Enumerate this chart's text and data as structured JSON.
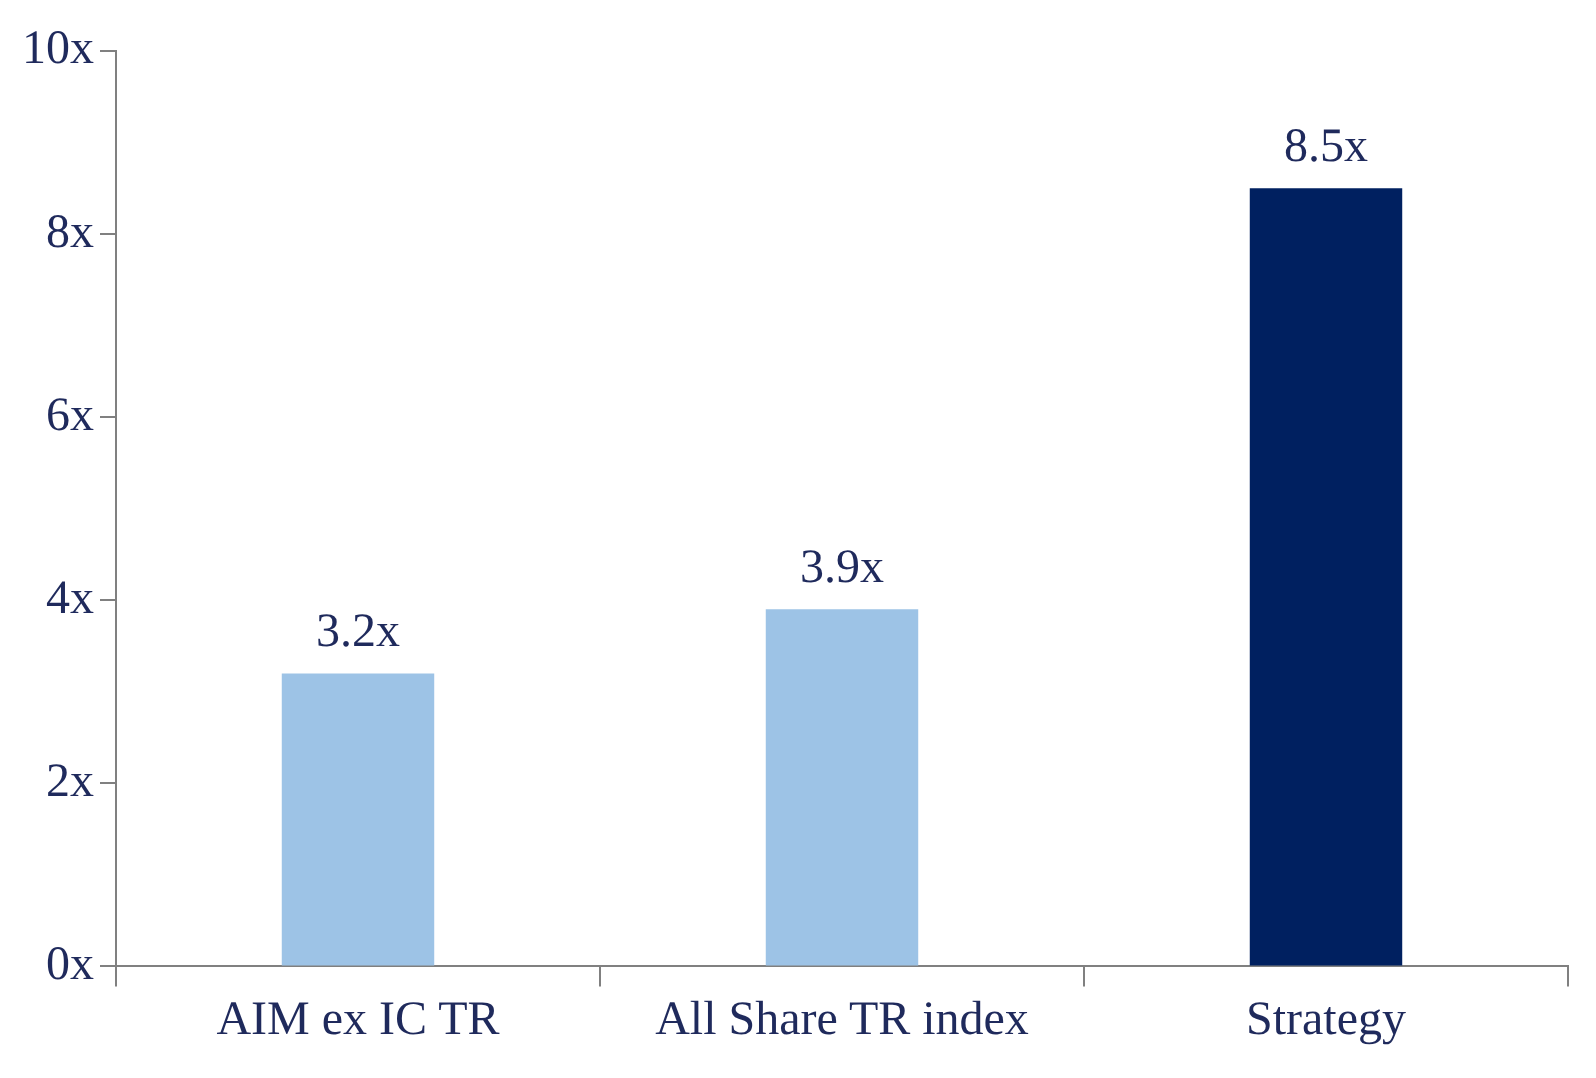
{
  "chart_data": {
    "type": "bar",
    "categories": [
      "AIM ex IC TR",
      "All Share TR index",
      "Strategy"
    ],
    "values": [
      3.2,
      3.9,
      8.5
    ],
    "colors": [
      "#9dc3e6",
      "#9dc3e6",
      "#002060"
    ],
    "value_labels": [
      "3.2x",
      "3.9x",
      "8.5x"
    ],
    "ylim": [
      0,
      10
    ],
    "yticks": [
      {
        "value": 0,
        "label": "0x"
      },
      {
        "value": 2,
        "label": "2x"
      },
      {
        "value": 4,
        "label": "4x"
      },
      {
        "value": 6,
        "label": "6x"
      },
      {
        "value": 8,
        "label": "8x"
      },
      {
        "value": 10,
        "label": "10x"
      }
    ],
    "grid": false,
    "legend": false
  }
}
